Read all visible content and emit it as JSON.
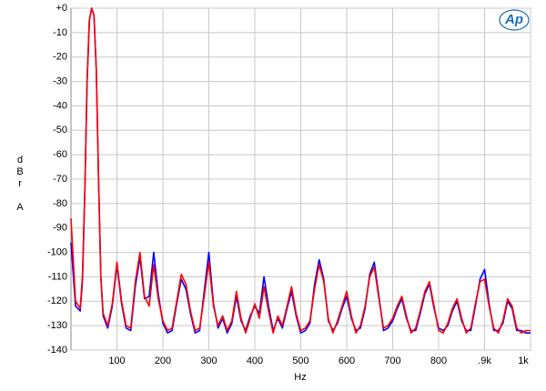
{
  "chart_data": {
    "type": "line",
    "logo": "Ap",
    "x_label": "Hz",
    "y_label": "dBr A",
    "xlim": [
      0,
      1000
    ],
    "ylim": [
      -140,
      0
    ],
    "grid": true,
    "xticks": [
      100,
      200,
      300,
      400,
      500,
      600,
      700,
      800,
      {
        "value": 900,
        "label": ".9k"
      },
      {
        "value": 1000,
        "label": "1k"
      }
    ],
    "yticks": [
      {
        "value": 0,
        "label": "+0"
      },
      -10,
      -20,
      -30,
      -40,
      -50,
      -60,
      -70,
      -80,
      -90,
      -100,
      -110,
      -120,
      -130,
      -140
    ],
    "x": [
      0,
      10,
      20,
      25,
      30,
      35,
      40,
      45,
      50,
      55,
      60,
      65,
      70,
      80,
      90,
      100,
      110,
      120,
      130,
      140,
      150,
      160,
      170,
      180,
      190,
      200,
      210,
      220,
      230,
      240,
      250,
      260,
      270,
      280,
      290,
      300,
      310,
      320,
      330,
      340,
      350,
      360,
      370,
      380,
      390,
      400,
      410,
      420,
      430,
      440,
      450,
      460,
      470,
      480,
      490,
      500,
      510,
      520,
      530,
      540,
      550,
      560,
      570,
      580,
      590,
      600,
      610,
      620,
      630,
      640,
      650,
      660,
      670,
      680,
      690,
      700,
      710,
      720,
      730,
      740,
      750,
      760,
      770,
      780,
      790,
      800,
      810,
      820,
      830,
      840,
      850,
      860,
      870,
      880,
      890,
      900,
      910,
      920,
      930,
      940,
      950,
      960,
      970,
      980,
      990,
      1000
    ],
    "series": [
      {
        "color": "#0000ff",
        "values": [
          -96,
          -122,
          -124,
          -112,
          -76,
          -30,
          -5,
          0,
          -3,
          -25,
          -70,
          -110,
          -126,
          -131,
          -122,
          -105,
          -121,
          -131,
          -132,
          -114,
          -102,
          -119,
          -118,
          -100,
          -117,
          -129,
          -133,
          -132,
          -121,
          -111,
          -115,
          -125,
          -133,
          -132,
          -116,
          -100,
          -121,
          -131,
          -127,
          -133,
          -129,
          -118,
          -128,
          -132,
          -126,
          -122,
          -125,
          -110,
          -122,
          -132,
          -127,
          -131,
          -123,
          -116,
          -126,
          -133,
          -132,
          -129,
          -113,
          -103,
          -111,
          -128,
          -132,
          -129,
          -123,
          -118,
          -127,
          -132,
          -131,
          -123,
          -109,
          -104,
          -118,
          -132,
          -131,
          -128,
          -123,
          -119,
          -127,
          -132,
          -132,
          -125,
          -117,
          -113,
          -123,
          -131,
          -132,
          -130,
          -124,
          -120,
          -128,
          -132,
          -132,
          -122,
          -111,
          -107,
          -121,
          -132,
          -132,
          -129,
          -120,
          -123,
          -132,
          -132,
          -133,
          -133
        ]
      },
      {
        "color": "#ff0000",
        "values": [
          -86,
          -120,
          -123,
          -110,
          -75,
          -30,
          -5,
          0,
          -3,
          -25,
          -70,
          -110,
          -125,
          -130,
          -121,
          -104,
          -120,
          -130,
          -131,
          -112,
          -100,
          -118,
          -122,
          -105,
          -119,
          -128,
          -132,
          -131,
          -120,
          -109,
          -113,
          -124,
          -132,
          -131,
          -118,
          -104,
          -122,
          -130,
          -126,
          -132,
          -128,
          -116,
          -127,
          -133,
          -127,
          -121,
          -127,
          -114,
          -124,
          -133,
          -126,
          -130,
          -122,
          -114,
          -125,
          -132,
          -131,
          -128,
          -115,
          -105,
          -112,
          -127,
          -133,
          -128,
          -122,
          -116,
          -126,
          -133,
          -130,
          -122,
          -110,
          -106,
          -119,
          -131,
          -130,
          -127,
          -122,
          -118,
          -126,
          -133,
          -131,
          -124,
          -116,
          -112,
          -122,
          -132,
          -133,
          -129,
          -123,
          -119,
          -127,
          -133,
          -131,
          -121,
          -112,
          -111,
          -122,
          -131,
          -133,
          -128,
          -119,
          -122,
          -131,
          -133,
          -132,
          -132
        ]
      }
    ]
  }
}
